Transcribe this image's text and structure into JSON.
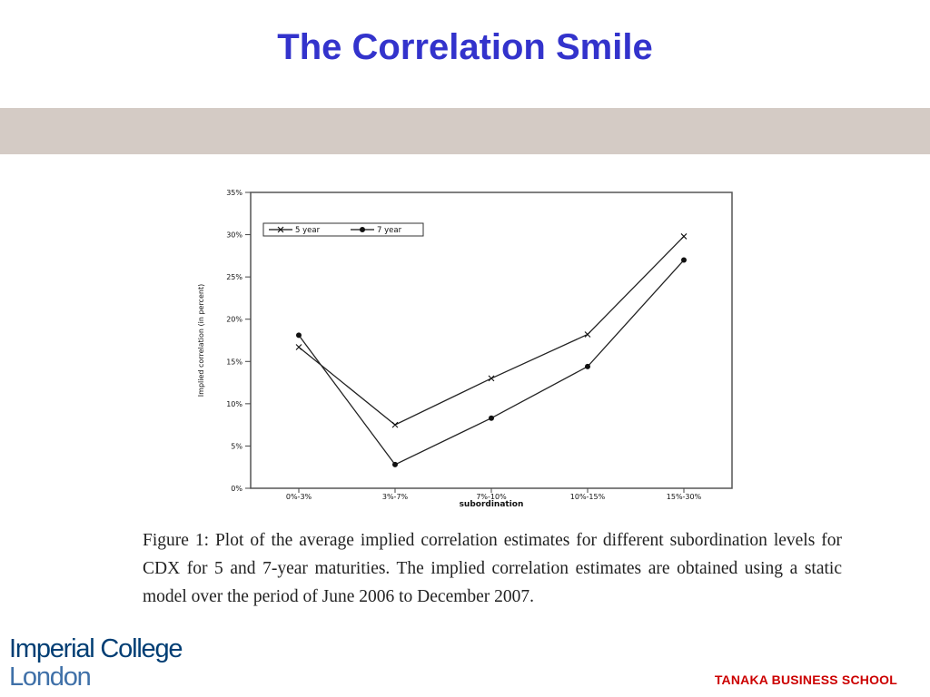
{
  "slide": {
    "title": "The Correlation Smile",
    "caption": "Figure 1: Plot of the average implied correlation estimates for different subordination levels for CDX for 5 and 7-year maturities.  The implied correlation estimates are obtained using a static model over the period of June 2006 to December 2007."
  },
  "logos": {
    "imperial_line1": "Imperial College",
    "imperial_line2": "London",
    "tanaka": "TANAKA BUSINESS SCHOOL"
  },
  "colors": {
    "title": "#3333cc",
    "band": "#d4cbc5",
    "imperial_dark": "#003e74",
    "imperial_light": "#3f70a8",
    "tanaka": "#cc0000"
  },
  "chart_data": {
    "type": "line",
    "categories": [
      "0%-3%",
      "3%-7%",
      "7%-10%",
      "10%-15%",
      "15%-30%"
    ],
    "series": [
      {
        "name": "5 year",
        "marker": "x",
        "values": [
          16.7,
          7.5,
          13.0,
          18.2,
          29.8
        ]
      },
      {
        "name": "7 year",
        "marker": "dot",
        "values": [
          18.1,
          2.8,
          8.3,
          14.4,
          27.0
        ]
      }
    ],
    "xlabel": "subordination",
    "ylabel": "Implied correlation (in percent)",
    "ylim": [
      0,
      35
    ],
    "yticks": [
      0,
      5,
      10,
      15,
      20,
      25,
      30,
      35
    ],
    "ytick_labels": [
      "0%",
      "5%",
      "10%",
      "15%",
      "20%",
      "25%",
      "30%",
      "35%"
    ],
    "grid": false,
    "legend": "top-left"
  }
}
